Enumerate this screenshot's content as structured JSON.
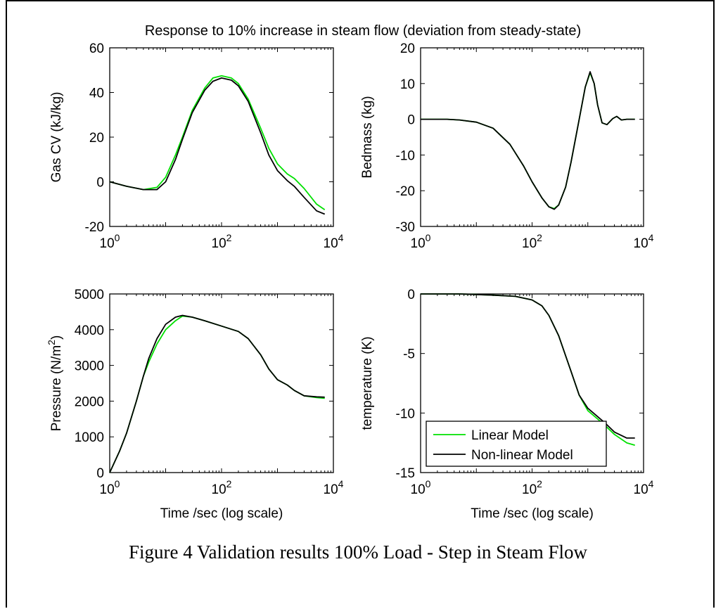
{
  "figure_title": "Response to 10% increase in steam flow  (deviation from steady-state)",
  "caption": "Figure 4  Validation results 100% Load - Step in Steam Flow",
  "colors": {
    "linear": "#00e000",
    "nonlinear": "#000000"
  },
  "chart_data": [
    {
      "type": "line",
      "title": "",
      "xlabel": "",
      "ylabel": "Gas CV (kJ/kg)",
      "xscale": "log",
      "xlim": [
        1,
        10000
      ],
      "ylim": [
        -20,
        60
      ],
      "yticks": [
        -20,
        0,
        20,
        40,
        60
      ],
      "xticks": [
        1,
        100,
        10000
      ],
      "grid": false,
      "series": [
        {
          "name": "Linear Model",
          "x": [
            1,
            2,
            4,
            7,
            10,
            15,
            20,
            30,
            50,
            70,
            100,
            150,
            200,
            300,
            500,
            700,
            1000,
            1500,
            2000,
            3000,
            5000,
            7000
          ],
          "y": [
            0,
            -2,
            -3.5,
            -2.5,
            2,
            12,
            20,
            32,
            42,
            46.5,
            47.5,
            46.5,
            44,
            37,
            24,
            15,
            8,
            3.5,
            1.5,
            -3,
            -10,
            -12.5
          ]
        },
        {
          "name": "Non-linear Model",
          "x": [
            1,
            2,
            4,
            7,
            10,
            15,
            20,
            30,
            50,
            70,
            100,
            150,
            200,
            300,
            500,
            700,
            1000,
            1500,
            2000,
            3000,
            5000,
            7000
          ],
          "y": [
            0,
            -2,
            -3.5,
            -3.5,
            0,
            10,
            19,
            31,
            41,
            45,
            46.5,
            45.5,
            43,
            36,
            22,
            12,
            5,
            0.5,
            -2,
            -7,
            -13,
            -14.5
          ]
        }
      ]
    },
    {
      "type": "line",
      "title": "",
      "xlabel": "",
      "ylabel": "Bedmass (kg)",
      "xscale": "log",
      "xlim": [
        1,
        10000
      ],
      "ylim": [
        -30,
        20
      ],
      "yticks": [
        -30,
        -20,
        -10,
        0,
        10,
        20
      ],
      "xticks": [
        1,
        100,
        10000
      ],
      "grid": false,
      "series": [
        {
          "name": "Linear Model",
          "x": [
            1,
            3,
            5,
            10,
            20,
            40,
            70,
            100,
            150,
            200,
            250,
            300,
            400,
            500,
            700,
            900,
            1100,
            1300,
            1500,
            1800,
            2200,
            2800,
            3300,
            4000,
            5000,
            7000
          ],
          "y": [
            0,
            0,
            -0.2,
            -0.8,
            -2.5,
            -7,
            -13,
            -17.5,
            -22,
            -24.5,
            -25,
            -24,
            -19,
            -12,
            0,
            9,
            13,
            10,
            4,
            -1,
            -1.5,
            0.2,
            0.8,
            -0.2,
            0,
            0
          ]
        },
        {
          "name": "Non-linear Model",
          "x": [
            1,
            3,
            5,
            10,
            20,
            40,
            70,
            100,
            150,
            200,
            250,
            300,
            400,
            500,
            700,
            900,
            1100,
            1300,
            1500,
            1800,
            2200,
            2800,
            3300,
            4000,
            5000,
            7000
          ],
          "y": [
            0,
            0,
            -0.2,
            -0.8,
            -2.5,
            -7,
            -13,
            -17.5,
            -22,
            -24.5,
            -25.2,
            -24,
            -19,
            -12,
            0,
            9,
            13.3,
            10,
            4,
            -1,
            -1.5,
            0.2,
            0.8,
            -0.2,
            0,
            0
          ]
        }
      ]
    },
    {
      "type": "line",
      "title": "",
      "xlabel": "Time /sec (log scale)",
      "ylabel": "Pressure (N/m2)",
      "ylabel_main": "Pressure (N/m",
      "ylabel_sup": "2",
      "ylabel_end": ")",
      "xscale": "log",
      "xlim": [
        1,
        10000
      ],
      "ylim": [
        0,
        5000
      ],
      "yticks": [
        0,
        1000,
        2000,
        3000,
        4000,
        5000
      ],
      "xticks": [
        1,
        100,
        10000
      ],
      "grid": false,
      "series": [
        {
          "name": "Linear Model",
          "x": [
            1,
            1.5,
            2,
            3,
            4,
            5,
            7,
            10,
            15,
            20,
            30,
            50,
            100,
            200,
            300,
            500,
            700,
            1000,
            1500,
            2000,
            3000,
            5000,
            7000
          ],
          "y": [
            0,
            600,
            1100,
            2000,
            2700,
            3100,
            3600,
            4000,
            4250,
            4380,
            4350,
            4250,
            4100,
            3950,
            3750,
            3300,
            2900,
            2600,
            2450,
            2300,
            2150,
            2100,
            2080
          ]
        },
        {
          "name": "Non-linear Model",
          "x": [
            1,
            1.5,
            2,
            3,
            4,
            5,
            7,
            10,
            15,
            20,
            30,
            50,
            100,
            200,
            300,
            500,
            700,
            1000,
            1500,
            2000,
            3000,
            5000,
            7000
          ],
          "y": [
            0,
            600,
            1100,
            2000,
            2700,
            3200,
            3750,
            4150,
            4350,
            4400,
            4350,
            4250,
            4100,
            3950,
            3750,
            3300,
            2900,
            2600,
            2450,
            2300,
            2150,
            2120,
            2110
          ]
        }
      ]
    },
    {
      "type": "line",
      "title": "",
      "xlabel": "Time /sec (log scale)",
      "ylabel": "temperature (K)",
      "xscale": "log",
      "xlim": [
        1,
        10000
      ],
      "ylim": [
        -15,
        0
      ],
      "yticks": [
        -15,
        -10,
        -5,
        0
      ],
      "xticks": [
        1,
        100,
        10000
      ],
      "grid": false,
      "legend": {
        "position": "bottom-left",
        "entries": [
          "Linear Model",
          "Non-linear Model"
        ]
      },
      "series": [
        {
          "name": "Linear Model",
          "x": [
            1,
            5,
            10,
            20,
            50,
            100,
            150,
            200,
            300,
            500,
            700,
            1000,
            1500,
            2000,
            3000,
            5000,
            7000
          ],
          "y": [
            0,
            0,
            -0.05,
            -0.1,
            -0.2,
            -0.5,
            -1,
            -1.8,
            -3.5,
            -6.5,
            -8.5,
            -9.8,
            -10.5,
            -11,
            -11.8,
            -12.5,
            -12.7
          ]
        },
        {
          "name": "Non-linear Model",
          "x": [
            1,
            5,
            10,
            20,
            50,
            100,
            150,
            200,
            300,
            500,
            700,
            1000,
            1500,
            2000,
            3000,
            5000,
            7000
          ],
          "y": [
            0,
            0,
            -0.05,
            -0.1,
            -0.2,
            -0.5,
            -1,
            -1.8,
            -3.5,
            -6.5,
            -8.5,
            -9.6,
            -10.3,
            -10.8,
            -11.6,
            -12.1,
            -12.1
          ]
        }
      ]
    }
  ]
}
